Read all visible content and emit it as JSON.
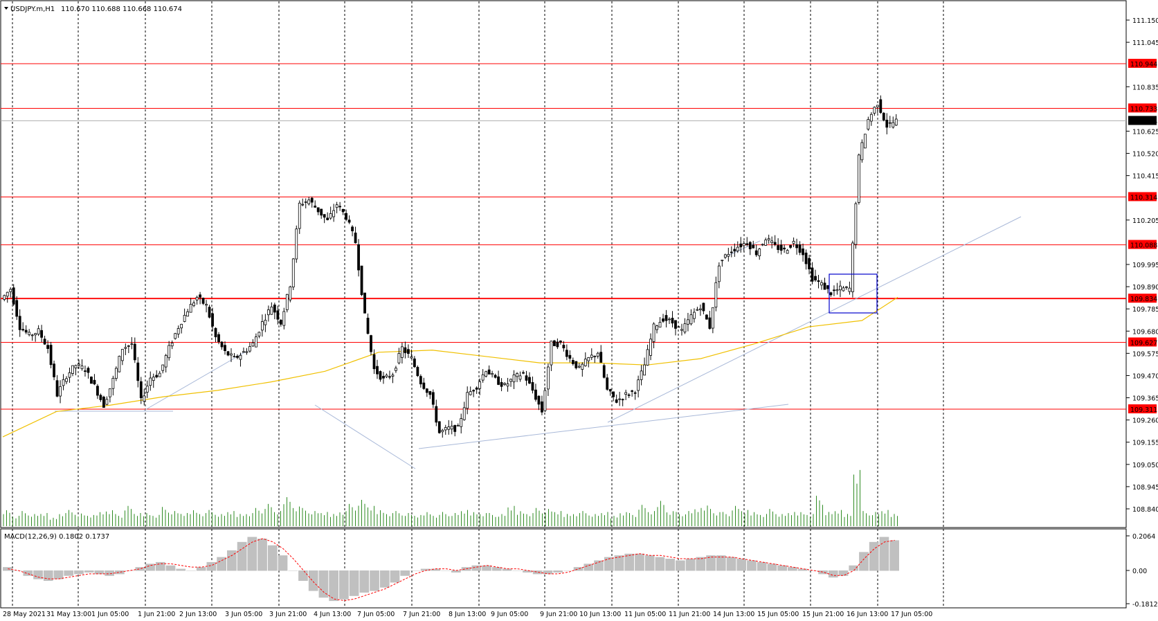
{
  "header": {
    "symbol": "USDJPY.m,H1",
    "ohlc": "110.670 110.688 110.668 110.674"
  },
  "macd": {
    "label": "MACD(12,26,9) 0.1802 0.1737",
    "ticks": [
      "0.2064",
      "0.00",
      "-0.1812"
    ]
  },
  "chart_data": {
    "type": "candlestick",
    "symbol": "USDJPY.m",
    "timeframe": "H1",
    "ylim": [
      108.84,
      111.2
    ],
    "y_ticks": [
      "111.150",
      "111.045",
      "110.835",
      "110.625",
      "110.520",
      "110.415",
      "110.205",
      "109.995",
      "109.890",
      "109.785",
      "109.680",
      "109.575",
      "109.470",
      "109.365",
      "109.260",
      "109.155",
      "109.050",
      "108.945",
      "108.840"
    ],
    "x_ticks": [
      "28 May 2021",
      "31 May 13:00",
      "1 Jun 05:00",
      "1 Jun 21:00",
      "2 Jun 13:00",
      "3 Jun 05:00",
      "3 Jun 21:00",
      "4 Jun 13:00",
      "7 Jun 05:00",
      "7 Jun 21:00",
      "8 Jun 13:00",
      "9 Jun 05:00",
      "9 Jun 21:00",
      "10 Jun 13:00",
      "11 Jun 05:00",
      "11 Jun 21:00",
      "14 Jun 13:00",
      "15 Jun 05:00",
      "15 Jun 21:00",
      "16 Jun 13:00",
      "17 Jun 05:00"
    ],
    "current_price": "110.674",
    "horizontal_levels": [
      {
        "value": 110.944,
        "label": "110.944"
      },
      {
        "value": 110.733,
        "label": "110.733"
      },
      {
        "value": 110.314,
        "label": "110.314"
      },
      {
        "value": 110.088,
        "label": "110.088"
      },
      {
        "value": 109.834,
        "label": "109.834"
      },
      {
        "value": 109.627,
        "label": "109.627"
      },
      {
        "value": 109.311,
        "label": "109.311"
      }
    ],
    "price_path": [
      [
        0,
        109.83
      ],
      [
        1,
        109.88
      ],
      [
        2,
        109.7
      ],
      [
        3,
        109.66
      ],
      [
        4,
        109.68
      ],
      [
        5,
        109.6
      ],
      [
        6,
        109.38
      ],
      [
        7,
        109.47
      ],
      [
        8,
        109.52
      ],
      [
        9,
        109.5
      ],
      [
        10,
        109.42
      ],
      [
        11,
        109.33
      ],
      [
        12,
        109.45
      ],
      [
        13,
        109.6
      ],
      [
        14,
        109.62
      ],
      [
        15,
        109.35
      ],
      [
        16,
        109.46
      ],
      [
        17,
        109.48
      ],
      [
        18,
        109.6
      ],
      [
        19,
        109.7
      ],
      [
        20,
        109.78
      ],
      [
        21,
        109.84
      ],
      [
        22,
        109.8
      ],
      [
        23,
        109.65
      ],
      [
        24,
        109.58
      ],
      [
        25,
        109.55
      ],
      [
        26,
        109.58
      ],
      [
        27,
        109.62
      ],
      [
        28,
        109.72
      ],
      [
        29,
        109.8
      ],
      [
        30,
        109.72
      ],
      [
        31,
        109.9
      ],
      [
        32,
        110.28
      ],
      [
        33,
        110.3
      ],
      [
        34,
        110.25
      ],
      [
        35,
        110.2
      ],
      [
        36,
        110.28
      ],
      [
        37,
        110.22
      ],
      [
        38,
        110.1
      ],
      [
        39,
        109.75
      ],
      [
        40,
        109.5
      ],
      [
        41,
        109.45
      ],
      [
        42,
        109.48
      ],
      [
        43,
        109.6
      ],
      [
        44,
        109.55
      ],
      [
        45,
        109.44
      ],
      [
        46,
        109.38
      ],
      [
        47,
        109.2
      ],
      [
        48,
        109.22
      ],
      [
        49,
        109.22
      ],
      [
        50,
        109.38
      ],
      [
        51,
        109.42
      ],
      [
        52,
        109.5
      ],
      [
        53,
        109.45
      ],
      [
        54,
        109.42
      ],
      [
        55,
        109.46
      ],
      [
        56,
        109.48
      ],
      [
        57,
        109.4
      ],
      [
        58,
        109.3
      ],
      [
        59,
        109.62
      ],
      [
        60,
        109.62
      ],
      [
        61,
        109.55
      ],
      [
        62,
        109.5
      ],
      [
        63,
        109.55
      ],
      [
        64,
        109.58
      ],
      [
        65,
        109.4
      ],
      [
        66,
        109.35
      ],
      [
        67,
        109.38
      ],
      [
        68,
        109.4
      ],
      [
        69,
        109.52
      ],
      [
        70,
        109.7
      ],
      [
        71,
        109.74
      ],
      [
        72,
        109.72
      ],
      [
        73,
        109.68
      ],
      [
        74,
        109.75
      ],
      [
        75,
        109.8
      ],
      [
        76,
        109.7
      ],
      [
        77,
        110.0
      ],
      [
        78,
        110.05
      ],
      [
        79,
        110.08
      ],
      [
        80,
        110.1
      ],
      [
        81,
        110.05
      ],
      [
        82,
        110.12
      ],
      [
        83,
        110.08
      ],
      [
        84,
        110.06
      ],
      [
        85,
        110.1
      ],
      [
        86,
        110.05
      ],
      [
        87,
        109.93
      ],
      [
        88,
        109.9
      ],
      [
        89,
        109.86
      ],
      [
        90,
        109.88
      ],
      [
        91,
        109.88
      ],
      [
        92,
        110.5
      ],
      [
        93,
        110.68
      ],
      [
        94,
        110.76
      ],
      [
        95,
        110.65
      ],
      [
        96,
        110.674
      ]
    ],
    "moving_average": [
      [
        0,
        109.18
      ],
      [
        6,
        109.3
      ],
      [
        12,
        109.33
      ],
      [
        18,
        109.37
      ],
      [
        24,
        109.4
      ],
      [
        30,
        109.44
      ],
      [
        36,
        109.49
      ],
      [
        42,
        109.58
      ],
      [
        48,
        109.59
      ],
      [
        54,
        109.56
      ],
      [
        60,
        109.53
      ],
      [
        66,
        109.53
      ],
      [
        72,
        109.52
      ],
      [
        78,
        109.55
      ],
      [
        84,
        109.62
      ],
      [
        90,
        109.7
      ],
      [
        96,
        109.73
      ],
      [
        100,
        109.84
      ]
    ],
    "volume": [
      34,
      22,
      30,
      24,
      26,
      18,
      28,
      32,
      25,
      22,
      30,
      34,
      24,
      40,
      26,
      28,
      24,
      38,
      30,
      26,
      34,
      28,
      32,
      24,
      30,
      26,
      28,
      36,
      44,
      30,
      62,
      42,
      36,
      30,
      28,
      26,
      32,
      44,
      52,
      40,
      34,
      28,
      30,
      26,
      22,
      30,
      24,
      28,
      26,
      32,
      30,
      28,
      26,
      24,
      40,
      32,
      28,
      36,
      34,
      30,
      26,
      28,
      30,
      24,
      28,
      22,
      30,
      26,
      42,
      30,
      54,
      32,
      28,
      30,
      36,
      44,
      30,
      28,
      40,
      32,
      30,
      26,
      34,
      24,
      28,
      30,
      26,
      60,
      28,
      32,
      26,
      120,
      30,
      28,
      32,
      26
    ],
    "macd_hist": [
      0.02,
      0.0,
      -0.03,
      -0.05,
      -0.06,
      -0.05,
      -0.03,
      -0.02,
      -0.01,
      -0.02,
      -0.03,
      -0.02,
      0.0,
      0.02,
      0.04,
      0.05,
      0.03,
      0.01,
      0.0,
      0.02,
      0.05,
      0.08,
      0.12,
      0.17,
      0.2,
      0.19,
      0.15,
      0.09,
      0.0,
      -0.06,
      -0.12,
      -0.16,
      -0.18,
      -0.17,
      -0.15,
      -0.13,
      -0.12,
      -0.1,
      -0.07,
      -0.03,
      0.0,
      0.01,
      0.01,
      0.0,
      -0.01,
      0.02,
      0.03,
      0.03,
      0.02,
      0.01,
      0.0,
      -0.01,
      -0.02,
      -0.02,
      -0.01,
      0.0,
      0.02,
      0.04,
      0.06,
      0.08,
      0.09,
      0.1,
      0.1,
      0.09,
      0.08,
      0.07,
      0.06,
      0.07,
      0.08,
      0.09,
      0.09,
      0.08,
      0.07,
      0.06,
      0.05,
      0.04,
      0.03,
      0.02,
      0.01,
      0.0,
      -0.02,
      -0.04,
      -0.03,
      0.03,
      0.11,
      0.17,
      0.2,
      0.18
    ],
    "macd_signal": [
      0.01,
      0.0,
      -0.02,
      -0.04,
      -0.05,
      -0.05,
      -0.04,
      -0.03,
      -0.02,
      -0.02,
      -0.02,
      -0.01,
      0.0,
      0.01,
      0.03,
      0.04,
      0.04,
      0.03,
      0.02,
      0.02,
      0.03,
      0.06,
      0.09,
      0.13,
      0.17,
      0.19,
      0.17,
      0.13,
      0.07,
      0.0,
      -0.07,
      -0.13,
      -0.17,
      -0.18,
      -0.17,
      -0.15,
      -0.13,
      -0.11,
      -0.08,
      -0.05,
      -0.02,
      0.0,
      0.01,
      0.01,
      0.0,
      0.01,
      0.02,
      0.03,
      0.02,
      0.01,
      0.01,
      0.0,
      -0.01,
      -0.02,
      -0.02,
      -0.01,
      0.01,
      0.03,
      0.05,
      0.07,
      0.08,
      0.09,
      0.1,
      0.09,
      0.09,
      0.08,
      0.07,
      0.07,
      0.07,
      0.08,
      0.08,
      0.08,
      0.07,
      0.06,
      0.05,
      0.04,
      0.03,
      0.02,
      0.01,
      0.0,
      -0.01,
      -0.03,
      -0.03,
      0.0,
      0.07,
      0.13,
      0.17,
      0.18
    ],
    "colors": {
      "levels": "#ff0000",
      "price": "#000000",
      "ma": "#f0c000",
      "volume": "#2e8b22",
      "macd_hist": "#c0c0c0",
      "macd_signal": "#ff0000",
      "selection_box": "#0000cc",
      "trendline": "#a8b8d8"
    }
  }
}
